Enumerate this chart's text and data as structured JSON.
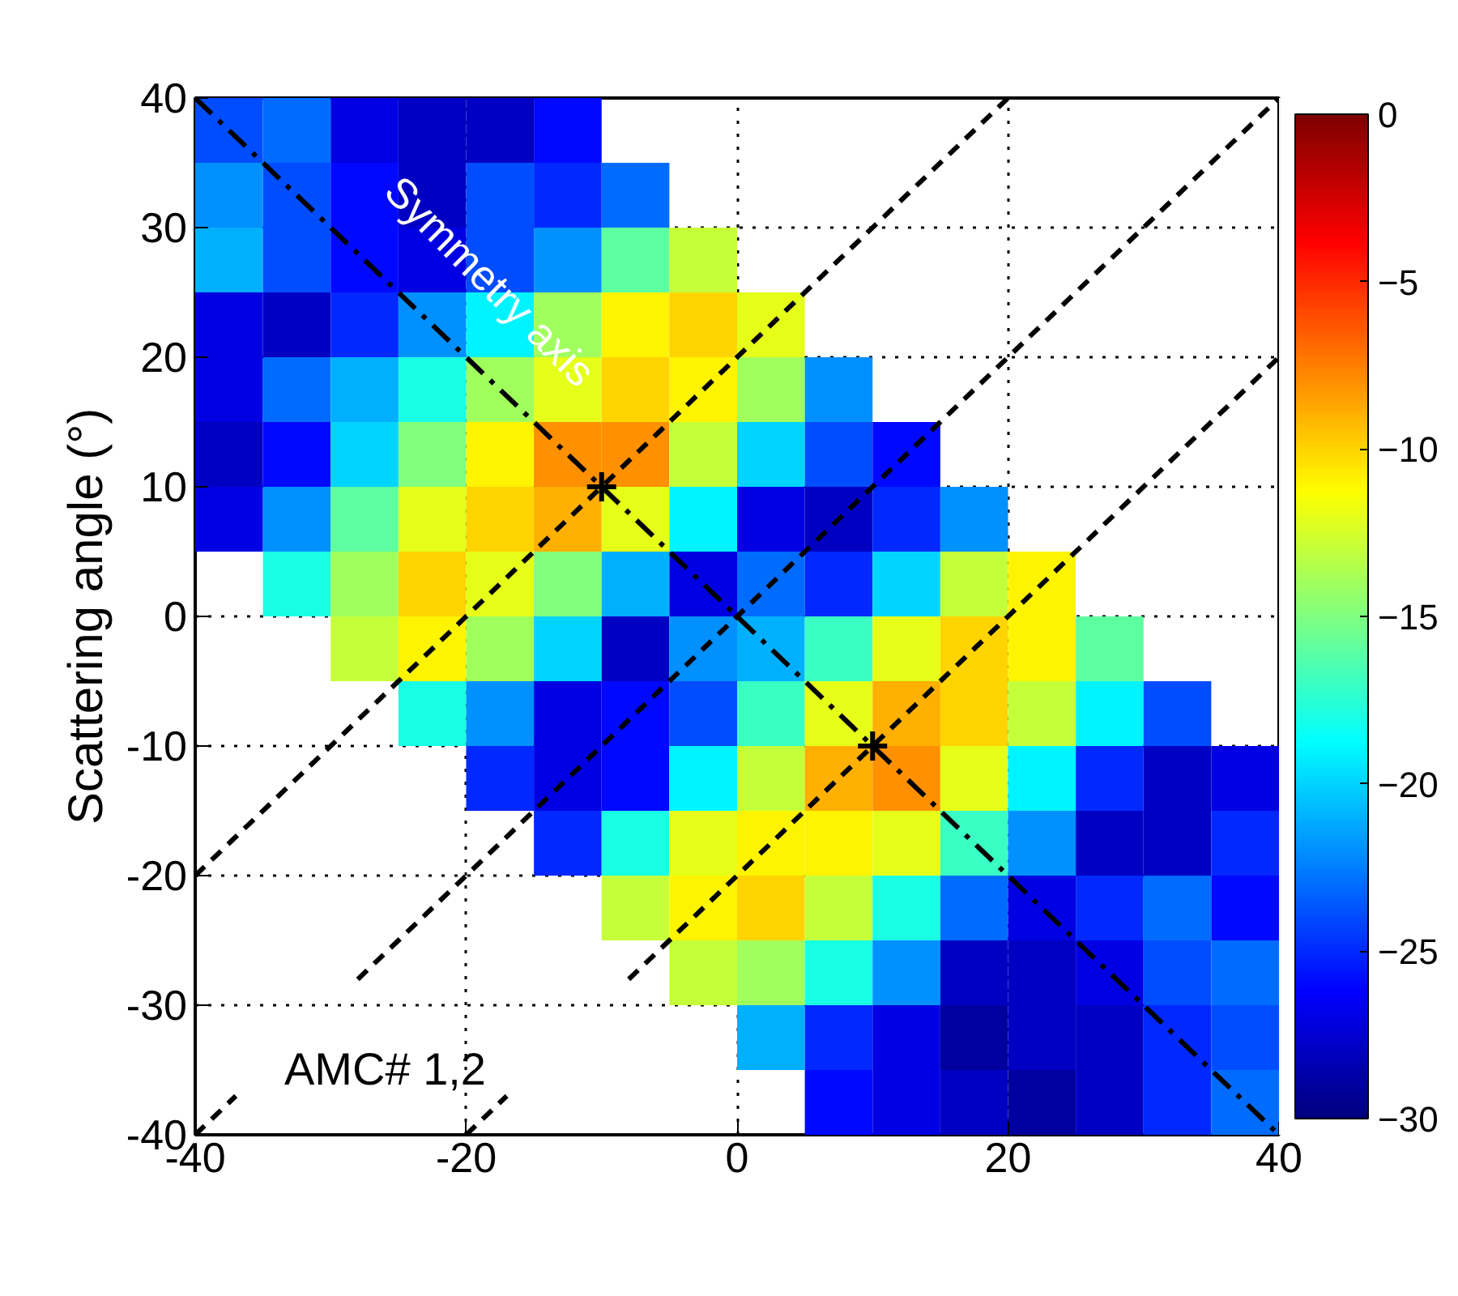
{
  "chart_data": {
    "type": "heatmap",
    "ylabel": "Scattering angle (°)",
    "xlim": [
      -40,
      40
    ],
    "ylim": [
      -40,
      40
    ],
    "xticks": [
      -40,
      -20,
      0,
      20,
      40
    ],
    "yticks": [
      -40,
      -30,
      -20,
      -10,
      0,
      10,
      20,
      30,
      40
    ],
    "grid": true,
    "clim": [
      -30,
      0
    ],
    "cticks": [
      -30,
      -25,
      -20,
      -15,
      -10,
      -5,
      0
    ],
    "cells": [
      [
        -24,
        -23,
        -27,
        -28,
        -28,
        -26,
        null,
        null,
        null,
        null,
        null,
        null,
        null,
        null,
        null,
        null
      ],
      [
        -22,
        -24,
        -26,
        -28,
        -24,
        -25,
        -23,
        null,
        null,
        null,
        null,
        null,
        null,
        null,
        null,
        null
      ],
      [
        -21,
        -24,
        -26,
        -27,
        -24,
        -22,
        -16,
        -13,
        null,
        null,
        null,
        null,
        null,
        null,
        null,
        null
      ],
      [
        -27,
        -28,
        -25,
        -22,
        -19,
        -14,
        -11,
        -10,
        -12,
        null,
        null,
        null,
        null,
        null,
        null,
        null
      ],
      [
        -27,
        -23,
        -21,
        -18,
        -14,
        -12,
        -10,
        -11,
        -14,
        -22,
        null,
        null,
        null,
        null,
        null,
        null
      ],
      [
        -28,
        -26,
        -20,
        -15,
        -11,
        -8,
        -8,
        -13,
        -20,
        -24,
        -26,
        null,
        null,
        null,
        null,
        null
      ],
      [
        -27,
        -22,
        -16,
        -12,
        -10,
        -9,
        -12,
        -19,
        -27,
        -28,
        -25,
        -22,
        null,
        null,
        null,
        null
      ],
      [
        null,
        -18,
        -14,
        -10,
        -12,
        -15,
        -21,
        -27,
        -23,
        -25,
        -20,
        -13,
        -11,
        null,
        null,
        null
      ],
      [
        null,
        null,
        -13,
        -11,
        -14,
        -20,
        -28,
        -22,
        -21,
        -17,
        -12,
        -10,
        -11,
        -16,
        null,
        null
      ],
      [
        null,
        null,
        null,
        -18,
        -22,
        -27,
        -26,
        -24,
        -17,
        -12,
        -9,
        -10,
        -13,
        -19,
        -24,
        null
      ],
      [
        null,
        null,
        null,
        null,
        -25,
        -27,
        -26,
        -19,
        -13,
        -9,
        -8,
        -12,
        -19,
        -25,
        -28,
        -27
      ],
      [
        null,
        null,
        null,
        null,
        null,
        -25,
        -18,
        -12,
        -11,
        -11,
        -12,
        -17,
        -22,
        -28,
        -28,
        -25
      ],
      [
        null,
        null,
        null,
        null,
        null,
        null,
        -13,
        -11,
        -10,
        -13,
        -18,
        -23,
        -27,
        -25,
        -23,
        -26
      ],
      [
        null,
        null,
        null,
        null,
        null,
        null,
        null,
        -13,
        -14,
        -18,
        -22,
        -28,
        -28,
        -27,
        -24,
        -23
      ],
      [
        null,
        null,
        null,
        null,
        null,
        null,
        null,
        null,
        -21,
        -25,
        -27,
        -29,
        -28,
        -28,
        -25,
        -24
      ],
      [
        null,
        null,
        null,
        null,
        null,
        null,
        null,
        null,
        null,
        -26,
        -27,
        -28,
        -29,
        -28,
        -25,
        -23
      ]
    ],
    "series": [
      {
        "type": "line",
        "color": "#000000",
        "line_style": "dashed",
        "x": [
          -40,
          20
        ],
        "values": [
          -20,
          40
        ]
      },
      {
        "type": "line",
        "color": "#000000",
        "line_style": "dashed",
        "x": [
          -40,
          -37
        ],
        "values": [
          -40,
          -37
        ]
      },
      {
        "type": "line",
        "color": "#000000",
        "line_style": "dashed",
        "x": [
          -28,
          40
        ],
        "values": [
          -28,
          40
        ]
      },
      {
        "type": "line",
        "color": "#000000",
        "line_style": "dashed",
        "x": [
          -20,
          -17
        ],
        "values": [
          -40,
          -37
        ]
      },
      {
        "type": "line",
        "color": "#000000",
        "line_style": "dashed",
        "x": [
          -8,
          40
        ],
        "values": [
          -28,
          20
        ]
      },
      {
        "type": "line",
        "color": "#000000",
        "line_style": "dashdot",
        "x": [
          -40,
          40
        ],
        "values": [
          40,
          -40
        ]
      },
      {
        "type": "scatter",
        "color": "#000000",
        "marker": "cross",
        "x": [
          -10,
          10
        ],
        "values": [
          10,
          -10
        ]
      }
    ],
    "annotations": [
      "Symmetry axis",
      "AMC# 1,2"
    ]
  }
}
